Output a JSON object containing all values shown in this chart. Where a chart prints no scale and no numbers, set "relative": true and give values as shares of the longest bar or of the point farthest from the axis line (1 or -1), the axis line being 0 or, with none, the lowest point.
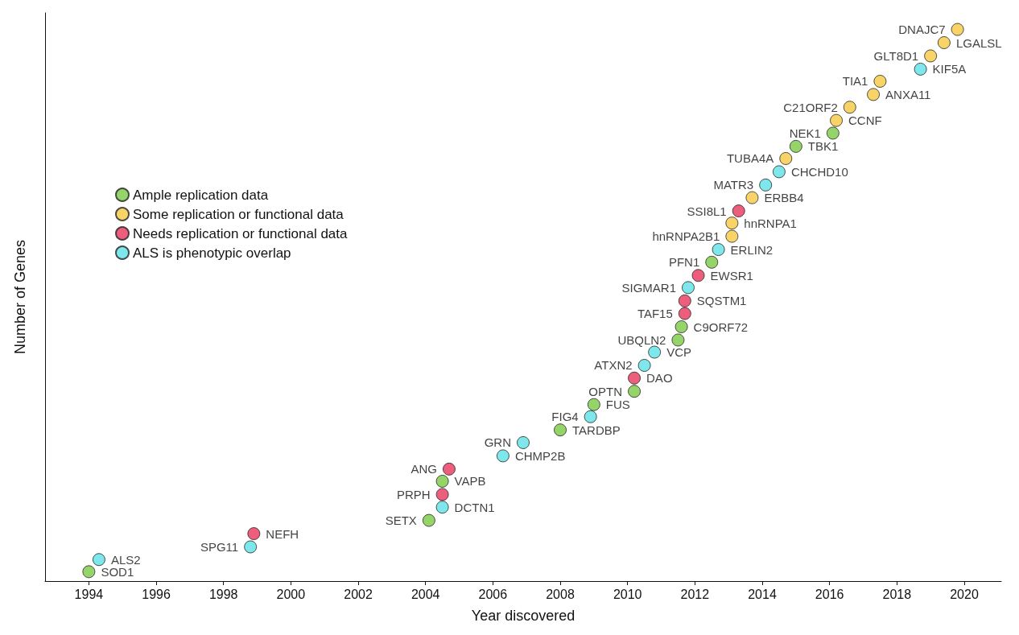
{
  "chart_data": {
    "type": "scatter",
    "xlabel": "Year discovered",
    "ylabel": "Number of Genes",
    "relative": true,
    "xlim": [
      1992.7,
      2021.1
    ],
    "xticks": [
      1994,
      1996,
      1998,
      2000,
      2002,
      2004,
      2006,
      2008,
      2010,
      2012,
      2014,
      2016,
      2018,
      2020
    ],
    "grid": false,
    "legend": "left",
    "marker": "circle",
    "series": [
      {
        "name": "Ample replication data",
        "color": "#7ac943",
        "x": [
          1994.0,
          2004.1,
          2004.5,
          2008.0,
          2009.0,
          2010.2,
          2011.5,
          2011.6,
          2012.5,
          2015.0,
          2016.1
        ],
        "values": [
          0.017,
          0.11,
          0.181,
          0.274,
          0.32,
          0.344,
          0.437,
          0.461,
          0.578,
          0.788,
          0.812
        ]
      },
      {
        "name": "Some replication or functional data",
        "color": "#f5c842",
        "x": [
          2013.1,
          2013.1,
          2013.7,
          2014.7,
          2016.2,
          2016.6,
          2017.3,
          2017.5,
          2019.0,
          2019.4,
          2019.8
        ],
        "values": [
          0.625,
          0.649,
          0.695,
          0.766,
          0.835,
          0.859,
          0.882,
          0.906,
          0.952,
          0.976,
          1
        ]
      },
      {
        "name": "Needs replication or functional data",
        "color": "#e8365d",
        "x": [
          1998.9,
          2004.5,
          2004.7,
          2010.2,
          2011.7,
          2011.7,
          2012.1,
          2013.3
        ],
        "values": [
          0.086,
          0.157,
          0.203,
          0.368,
          0.485,
          0.508,
          0.554,
          0.671
        ]
      },
      {
        "name": "ALS is phenotypic overlap",
        "color": "#5ce1e6",
        "x": [
          1994.3,
          1998.8,
          2004.5,
          2006.3,
          2006.9,
          2008.9,
          2010.5,
          2010.8,
          2011.8,
          2012.7,
          2014.1,
          2014.5,
          2018.7
        ],
        "values": [
          0.039,
          0.062,
          0.134,
          0.227,
          0.251,
          0.298,
          0.391,
          0.415,
          0.532,
          0.601,
          0.718,
          0.742,
          0.928
        ]
      }
    ],
    "annotations": [
      {
        "text": "SOD1",
        "x": 1994.0,
        "y": 0.017
      },
      {
        "text": "ALS2",
        "x": 1994.3,
        "y": 0.039
      },
      {
        "text": "SPG11",
        "x": 1998.8,
        "y": 0.062
      },
      {
        "text": "NEFH",
        "x": 1998.9,
        "y": 0.086
      },
      {
        "text": "SETX",
        "x": 2004.1,
        "y": 0.11
      },
      {
        "text": "DCTN1",
        "x": 2004.5,
        "y": 0.134
      },
      {
        "text": "PRPH",
        "x": 2004.5,
        "y": 0.157
      },
      {
        "text": "VAPB",
        "x": 2004.5,
        "y": 0.181
      },
      {
        "text": "ANG",
        "x": 2004.7,
        "y": 0.203
      },
      {
        "text": "CHMP2B",
        "x": 2006.3,
        "y": 0.227
      },
      {
        "text": "GRN",
        "x": 2006.9,
        "y": 0.251
      },
      {
        "text": "TARDBP",
        "x": 2008.0,
        "y": 0.274
      },
      {
        "text": "FIG4",
        "x": 2008.9,
        "y": 0.298
      },
      {
        "text": "FUS",
        "x": 2009.0,
        "y": 0.32
      },
      {
        "text": "OPTN",
        "x": 2010.2,
        "y": 0.344
      },
      {
        "text": "DAO",
        "x": 2010.2,
        "y": 0.368
      },
      {
        "text": "ATXN2",
        "x": 2010.5,
        "y": 0.391
      },
      {
        "text": "VCP",
        "x": 2010.8,
        "y": 0.415
      },
      {
        "text": "UBQLN2",
        "x": 2011.5,
        "y": 0.437
      },
      {
        "text": "C9ORF72",
        "x": 2011.6,
        "y": 0.461
      },
      {
        "text": "TAF15",
        "x": 2011.7,
        "y": 0.485
      },
      {
        "text": "SQSTM1",
        "x": 2011.7,
        "y": 0.508
      },
      {
        "text": "SIGMAR1",
        "x": 2011.8,
        "y": 0.532
      },
      {
        "text": "EWSR1",
        "x": 2012.1,
        "y": 0.554
      },
      {
        "text": "PFN1",
        "x": 2012.5,
        "y": 0.578
      },
      {
        "text": "ERLIN2",
        "x": 2012.7,
        "y": 0.601
      },
      {
        "text": "hnRNPA2B1",
        "x": 2013.1,
        "y": 0.625
      },
      {
        "text": "hnRNPA1",
        "x": 2013.1,
        "y": 0.649
      },
      {
        "text": "SSI8L1",
        "x": 2013.3,
        "y": 0.671
      },
      {
        "text": "ERBB4",
        "x": 2013.7,
        "y": 0.695
      },
      {
        "text": "MATR3",
        "x": 2014.1,
        "y": 0.718
      },
      {
        "text": "CHCHD10",
        "x": 2014.5,
        "y": 0.742
      },
      {
        "text": "TUBA4A",
        "x": 2014.7,
        "y": 0.766
      },
      {
        "text": "TBK1",
        "x": 2015.0,
        "y": 0.788
      },
      {
        "text": "NEK1",
        "x": 2016.1,
        "y": 0.812
      },
      {
        "text": "CCNF",
        "x": 2016.2,
        "y": 0.835
      },
      {
        "text": "C21ORF2",
        "x": 2016.6,
        "y": 0.859
      },
      {
        "text": "ANXA11",
        "x": 2017.3,
        "y": 0.882
      },
      {
        "text": "TIA1",
        "x": 2017.5,
        "y": 0.906
      },
      {
        "text": "KIF5A",
        "x": 2018.7,
        "y": 0.928
      },
      {
        "text": "GLT8D1",
        "x": 2019.0,
        "y": 0.952
      },
      {
        "text": "LGALSL",
        "x": 2019.4,
        "y": 0.976
      },
      {
        "text": "DNAJC7",
        "x": 2019.8,
        "y": 1
      }
    ]
  }
}
